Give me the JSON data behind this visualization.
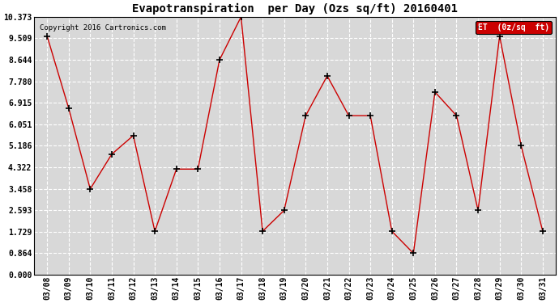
{
  "title": "Evapotranspiration  per Day (Ozs sq/ft) 20160401",
  "copyright": "Copyright 2016 Cartronics.com",
  "legend_label": "ET  (0z/sq  ft)",
  "dates": [
    "03/08",
    "03/09",
    "03/10",
    "03/11",
    "03/12",
    "03/13",
    "03/14",
    "03/15",
    "03/16",
    "03/17",
    "03/18",
    "03/19",
    "03/20",
    "03/21",
    "03/22",
    "03/23",
    "03/24",
    "03/25",
    "03/26",
    "03/27",
    "03/28",
    "03/29",
    "03/30",
    "03/31"
  ],
  "values": [
    9.6,
    6.7,
    3.45,
    4.85,
    5.6,
    1.75,
    4.25,
    4.25,
    8.64,
    10.373,
    1.75,
    2.59,
    6.4,
    8.0,
    6.4,
    6.4,
    1.75,
    0.864,
    7.35,
    6.4,
    2.59,
    9.6,
    5.19,
    1.75
  ],
  "yticks": [
    0.0,
    0.864,
    1.729,
    2.593,
    3.458,
    4.322,
    5.186,
    6.051,
    6.915,
    7.78,
    8.644,
    9.509,
    10.373
  ],
  "ylim": [
    0.0,
    10.373
  ],
  "line_color": "#cc0000",
  "marker": "+",
  "marker_color": "black",
  "bg_color": "#ffffff",
  "plot_bg_color": "#d8d8d8",
  "grid_color": "#ffffff",
  "title_fontsize": 10,
  "legend_bg": "#cc0000",
  "legend_text_color": "#ffffff"
}
